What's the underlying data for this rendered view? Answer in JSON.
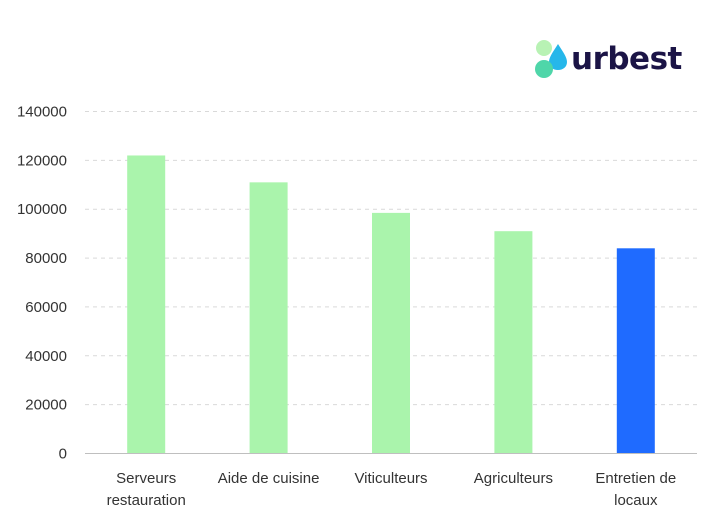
{
  "brand": {
    "name": "urbest"
  },
  "chart_data": {
    "type": "bar",
    "categories": [
      [
        "Serveurs",
        "restauration"
      ],
      [
        "Aide de cuisine"
      ],
      [
        "Viticulteurs"
      ],
      [
        "Agriculteurs"
      ],
      [
        "Entretien de",
        "locaux"
      ]
    ],
    "values": [
      122000,
      111000,
      98500,
      91000,
      84000
    ],
    "bar_colors": [
      "#aaf4ac",
      "#aaf4ac",
      "#aaf4ac",
      "#aaf4ac",
      "#1f6bff"
    ],
    "ylim": [
      0,
      140000
    ],
    "yticks": [
      0,
      20000,
      40000,
      60000,
      80000,
      100000,
      120000,
      140000
    ],
    "ytick_labels": [
      "0",
      "20000",
      "40000",
      "60000",
      "80000",
      "100000",
      "120000",
      "140000"
    ],
    "grid": true,
    "title": "",
    "xlabel": "",
    "ylabel": ""
  }
}
